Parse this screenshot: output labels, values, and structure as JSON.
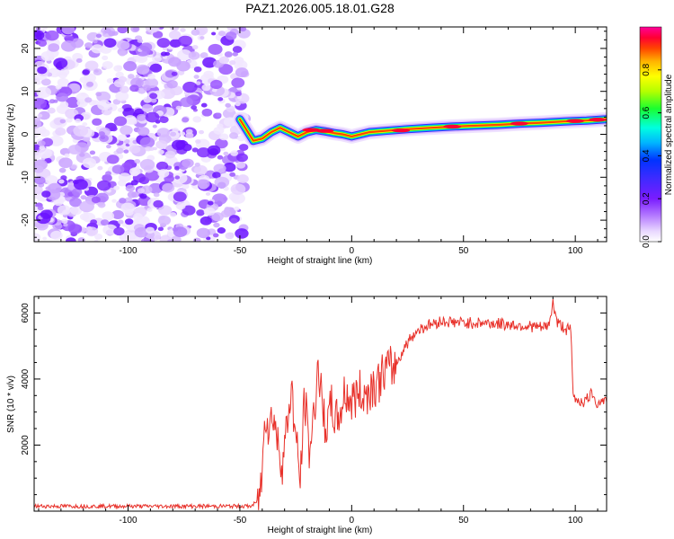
{
  "title": "PAZ1.2026.005.18.01.G28",
  "chart_data": [
    {
      "type": "heatmap",
      "title": "PAZ1.2026.005.18.01.G28",
      "xlabel": "Height of straight line (km)",
      "ylabel": "Frequency (Hz)",
      "xlim": [
        -142,
        114
      ],
      "ylim": [
        -25,
        25
      ],
      "x_ticks": [
        -100,
        -50,
        0,
        50,
        100
      ],
      "y_ticks": [
        -20,
        -10,
        0,
        10,
        20
      ],
      "colorbar": {
        "label": "Normalized spectral amplitude",
        "range": [
          0,
          1
        ],
        "ticks": [
          "0.0",
          "0.2",
          "0.4",
          "0.6",
          "0.8"
        ],
        "colors": [
          "#ffffff",
          "#e8d6ff",
          "#b57bff",
          "#7a1cff",
          "#3b2bff",
          "#0033ff",
          "#00b5ff",
          "#00ffe0",
          "#1aff2f",
          "#b4ff00",
          "#ffff00",
          "#ffb300",
          "#ff4500",
          "#ff0033",
          "#ff0099"
        ]
      },
      "noise_region": {
        "x_range": [
          -142,
          -50
        ],
        "note": "low-amplitude noise across all frequencies"
      },
      "ridge": [
        {
          "x": -50,
          "f": 3.5
        },
        {
          "x": -47,
          "f": 1
        },
        {
          "x": -44,
          "f": -1.5
        },
        {
          "x": -40,
          "f": -1
        },
        {
          "x": -36,
          "f": 0.5
        },
        {
          "x": -32,
          "f": 1.5
        },
        {
          "x": -28,
          "f": 0.5
        },
        {
          "x": -24,
          "f": -0.5
        },
        {
          "x": -20,
          "f": 0.5
        },
        {
          "x": -16,
          "f": 1
        },
        {
          "x": -12,
          "f": 0.7
        },
        {
          "x": -8,
          "f": 0.3
        },
        {
          "x": -4,
          "f": 0
        },
        {
          "x": 0,
          "f": -0.5
        },
        {
          "x": 4,
          "f": 0
        },
        {
          "x": 8,
          "f": 0.5
        },
        {
          "x": 15,
          "f": 0.8
        },
        {
          "x": 25,
          "f": 1.2
        },
        {
          "x": 35,
          "f": 1.5
        },
        {
          "x": 45,
          "f": 1.8
        },
        {
          "x": 55,
          "f": 2
        },
        {
          "x": 65,
          "f": 2.2
        },
        {
          "x": 75,
          "f": 2.5
        },
        {
          "x": 85,
          "f": 2.7
        },
        {
          "x": 95,
          "f": 3
        },
        {
          "x": 105,
          "f": 3.2
        },
        {
          "x": 114,
          "f": 3.5
        }
      ]
    },
    {
      "type": "line",
      "xlabel": "Height of straight line (km)",
      "ylabel": "SNR (10 * v/v)",
      "xlim": [
        -142,
        114
      ],
      "ylim": [
        0,
        6500
      ],
      "x_ticks": [
        -100,
        -50,
        0,
        50,
        100
      ],
      "y_ticks": [
        2000,
        4000,
        6000
      ],
      "line_color": "#e8312a",
      "series": [
        {
          "name": "SNR",
          "points": [
            [
              -142,
              150
            ],
            [
              -120,
              150
            ],
            [
              -100,
              150
            ],
            [
              -80,
              150
            ],
            [
              -60,
              150
            ],
            [
              -45,
              150
            ],
            [
              -42,
              300
            ],
            [
              -40,
              1000
            ],
            [
              -39,
              3200
            ],
            [
              -37,
              2500
            ],
            [
              -35,
              3000
            ],
            [
              -33,
              2000
            ],
            [
              -31,
              1500
            ],
            [
              -29,
              2500
            ],
            [
              -27,
              3800
            ],
            [
              -25,
              2200
            ],
            [
              -23,
              900
            ],
            [
              -21,
              3500
            ],
            [
              -19,
              1800
            ],
            [
              -17,
              2800
            ],
            [
              -15,
              4500
            ],
            [
              -13,
              3000
            ],
            [
              -11,
              2500
            ],
            [
              -9,
              3200
            ],
            [
              -7,
              2700
            ],
            [
              -5,
              3000
            ],
            [
              -3,
              3600
            ],
            [
              0,
              3300
            ],
            [
              3,
              3600
            ],
            [
              6,
              3500
            ],
            [
              9,
              3800
            ],
            [
              12,
              3900
            ],
            [
              15,
              4300
            ],
            [
              18,
              4300
            ],
            [
              21,
              4600
            ],
            [
              24,
              5000
            ],
            [
              27,
              5300
            ],
            [
              30,
              5500
            ],
            [
              35,
              5650
            ],
            [
              40,
              5750
            ],
            [
              50,
              5700
            ],
            [
              60,
              5700
            ],
            [
              70,
              5650
            ],
            [
              80,
              5600
            ],
            [
              85,
              5550
            ],
            [
              88,
              5600
            ],
            [
              90,
              6300
            ],
            [
              92,
              5700
            ],
            [
              96,
              5500
            ],
            [
              98,
              5500
            ],
            [
              99,
              3500
            ],
            [
              100,
              3400
            ],
            [
              104,
              3300
            ],
            [
              108,
              3600
            ],
            [
              110,
              3200
            ],
            [
              112,
              3400
            ],
            [
              114,
              3300
            ]
          ]
        }
      ]
    }
  ]
}
